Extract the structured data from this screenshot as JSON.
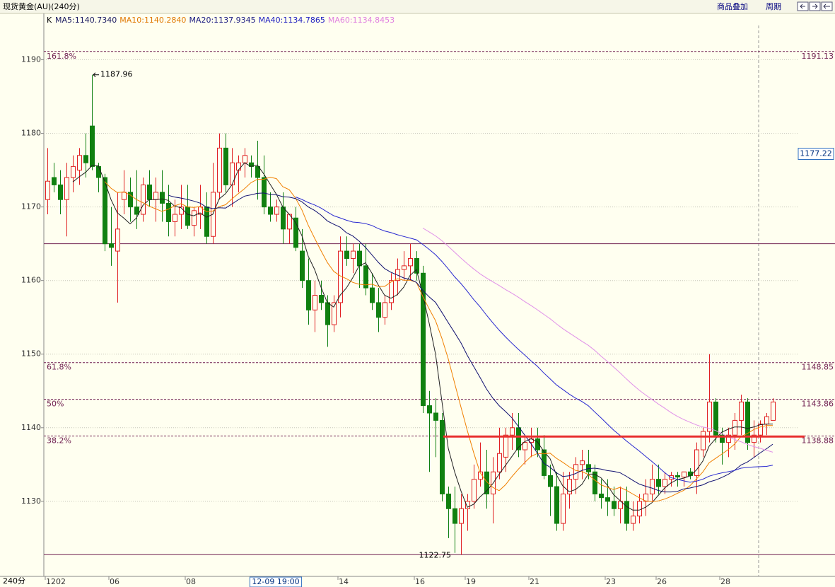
{
  "chart_data": {
    "type": "candlestick",
    "title": "现货黄金(AU)(240分)",
    "toolbar": [
      "商品叠加",
      "周期"
    ],
    "period": "240分",
    "legend_title": "K",
    "ma_legend": [
      {
        "name": "MA5",
        "label": "MA5:1140.7340",
        "color": "#1a1a60",
        "window": 5,
        "line": "#202020"
      },
      {
        "name": "MA10",
        "label": "MA10:1140.2840",
        "color": "#e07800",
        "window": 10,
        "line": "#f08000"
      },
      {
        "name": "MA20",
        "label": "MA20:1137.9345",
        "color": "#1a1a80",
        "window": 20,
        "line": "#101070"
      },
      {
        "name": "MA40",
        "label": "MA40:1134.7865",
        "color": "#2020c0",
        "window": 40,
        "line": "#2828d0"
      },
      {
        "name": "MA60",
        "label": "MA60:1134.8453",
        "color": "#e080e0",
        "window": 60,
        "line": "#e090e8"
      }
    ],
    "ylim": [
      1119.8,
      1196.2
    ],
    "yticks": [
      1130,
      1140,
      1150,
      1160,
      1170,
      1180,
      1190
    ],
    "grid": true,
    "up_color": "#e02020",
    "down_color": "#108010",
    "fib_levels": [
      {
        "label": "161.8%",
        "value": 1191.13
      },
      {
        "label": "61.8%",
        "value": 1148.85
      },
      {
        "label": "50%",
        "value": 1143.86
      },
      {
        "label": "38.2%",
        "value": 1138.88
      }
    ],
    "h_lines": [
      1165,
      1122.75
    ],
    "high_marker": 1187.96,
    "low_marker": 1122.75,
    "current_price": 1177.22,
    "resistance": 1138.8,
    "crosshair_label": "12-09 19:00",
    "categories": [
      "1202",
      null,
      null,
      null,
      null,
      null,
      null,
      null,
      null,
      null,
      "06",
      null,
      null,
      null,
      null,
      null,
      null,
      null,
      null,
      null,
      null,
      null,
      "08",
      null,
      null,
      null,
      null,
      null,
      null,
      null,
      null,
      null,
      null,
      null,
      null,
      null,
      null,
      null,
      null,
      null,
      null,
      null,
      null,
      null,
      null,
      null,
      "14",
      null,
      null,
      null,
      null,
      null,
      null,
      null,
      null,
      null,
      null,
      null,
      "16",
      null,
      null,
      null,
      null,
      null,
      null,
      null,
      "19",
      null,
      null,
      null,
      null,
      null,
      null,
      null,
      null,
      null,
      "21",
      null,
      null,
      null,
      null,
      null,
      null,
      null,
      null,
      null,
      null,
      null,
      "23",
      null,
      null,
      null,
      null,
      null,
      null,
      null,
      "26",
      null,
      null,
      null,
      null,
      null,
      null,
      null,
      null,
      null,
      "28",
      null,
      null,
      null,
      null,
      null,
      null,
      null,
      null
    ],
    "open": [
      1171,
      1174,
      1173,
      1171,
      1174,
      1175,
      1177,
      1181,
      1175.5,
      1174,
      1165,
      1164,
      1171,
      1172,
      1170,
      1169,
      1173,
      1171,
      1172,
      1170.5,
      1168,
      1169,
      1170,
      1167.5,
      1169,
      1170,
      1166,
      1172,
      1178,
      1173,
      1175,
      1176,
      1176,
      1175.5,
      1174,
      1170,
      1169,
      1170,
      1167,
      1168.5,
      1164,
      1160,
      1156,
      1158,
      1157,
      1154,
      1157,
      1164,
      1163,
      1164,
      1162,
      1159,
      1157,
      1155,
      1157,
      1160,
      1161.5,
      1162,
      1163,
      1161,
      1143,
      1142,
      1141,
      1131,
      1129,
      1127,
      1129,
      1130,
      1133,
      1134,
      1131,
      1134,
      1136,
      1139,
      1140,
      1137,
      1138,
      1138.5,
      1137,
      1133.5,
      1132,
      1127,
      1131,
      1133,
      1135,
      1135,
      1134,
      1131,
      1130.5,
      1130,
      1129,
      1130,
      1127,
      1128,
      1130,
      1131,
      1133,
      1132,
      1133,
      1133.5,
      1133.3,
      1134,
      1133.5,
      1137,
      1139.5,
      1143.5,
      1139,
      1138,
      1139,
      1141,
      1143.5,
      1138,
      1139,
      1140.5,
      1141
    ],
    "high": [
      1178,
      1176,
      1175,
      1176,
      1177,
      1178,
      1180,
      1187.96,
      1176,
      1174.5,
      1170,
      1172,
      1175,
      1174,
      1175,
      1174,
      1175,
      1174,
      1175,
      1173,
      1171,
      1173,
      1173,
      1170,
      1173,
      1172,
      1176,
      1180,
      1180,
      1178,
      1177,
      1178,
      1177,
      1179,
      1177,
      1172,
      1171,
      1172,
      1169,
      1170,
      1167,
      1163,
      1160,
      1160,
      1158,
      1158,
      1166,
      1166,
      1165,
      1165,
      1165,
      1161,
      1159,
      1158,
      1161,
      1163,
      1164,
      1165,
      1164,
      1162,
      1145,
      1144,
      1142,
      1132,
      1132,
      1131,
      1131,
      1135,
      1138,
      1137,
      1136,
      1140,
      1140,
      1142,
      1142,
      1139,
      1140,
      1140,
      1139,
      1135,
      1134,
      1134,
      1134,
      1136,
      1137,
      1137,
      1135,
      1133,
      1133,
      1132,
      1132,
      1132,
      1130,
      1131,
      1133,
      1135,
      1135,
      1134,
      1134,
      1134,
      1134,
      1134.5,
      1138,
      1140,
      1150,
      1144,
      1140,
      1140,
      1142,
      1144.5,
      1144,
      1141,
      1141,
      1142,
      1144
    ],
    "low": [
      1169,
      1172,
      1169,
      1166,
      1172,
      1173,
      1174,
      1175,
      1172,
      1164,
      1162,
      1157,
      1169,
      1168,
      1167,
      1168,
      1170,
      1168,
      1168,
      1166,
      1166,
      1167,
      1167,
      1166,
      1167,
      1165,
      1165,
      1171,
      1172,
      1170,
      1172,
      1174,
      1174,
      1171,
      1169,
      1168,
      1168,
      1165,
      1165,
      1164,
      1159,
      1154,
      1153,
      1156,
      1151,
      1153,
      1155,
      1162,
      1161,
      1159,
      1158,
      1156,
      1153,
      1154,
      1156,
      1158,
      1160,
      1160,
      1160,
      1142,
      1134,
      1136,
      1130,
      1125,
      1123,
      1122.75,
      1126,
      1129,
      1132,
      1129,
      1127,
      1133,
      1134,
      1137,
      1136,
      1135,
      1136,
      1136,
      1133,
      1128,
      1126,
      1126,
      1129,
      1131,
      1133,
      1133,
      1130,
      1129,
      1128,
      1128,
      1127,
      1126,
      1126,
      1127,
      1128,
      1130,
      1131,
      1131,
      1132,
      1132,
      1132,
      1133,
      1131,
      1136,
      1138,
      1138,
      1135,
      1136,
      1137,
      1139,
      1137,
      1136,
      1138,
      1139,
      1141
    ],
    "close": [
      1173.5,
      1173,
      1171,
      1174,
      1175.5,
      1177,
      1176,
      1175.5,
      1174,
      1165,
      1164.5,
      1167,
      1172,
      1170,
      1169,
      1173,
      1171,
      1172,
      1170.5,
      1168,
      1169,
      1170,
      1167.5,
      1169.5,
      1170,
      1166,
      1172,
      1178,
      1173,
      1176,
      1176,
      1177,
      1175.5,
      1174,
      1170,
      1169,
      1170,
      1167,
      1169,
      1164.5,
      1160,
      1156,
      1158,
      1157,
      1154,
      1157,
      1164,
      1163,
      1164,
      1162,
      1159,
      1157,
      1155,
      1157,
      1160,
      1161.5,
      1162,
      1163,
      1161,
      1143,
      1142,
      1141,
      1131,
      1129,
      1127,
      1129,
      1130,
      1133,
      1134,
      1131,
      1134,
      1136.5,
      1139,
      1140,
      1137,
      1138,
      1138.5,
      1137,
      1133.5,
      1132,
      1127,
      1131,
      1133,
      1135,
      1135.5,
      1134,
      1131,
      1130.5,
      1130,
      1129,
      1130,
      1127,
      1128,
      1130,
      1131,
      1133,
      1132,
      1133,
      1133.5,
      1133.3,
      1134,
      1133.5,
      1137,
      1139.5,
      1143.5,
      1139,
      1138,
      1139,
      1141,
      1143.5,
      1138,
      1139,
      1140.5,
      1141.5,
      1143.5
    ]
  }
}
